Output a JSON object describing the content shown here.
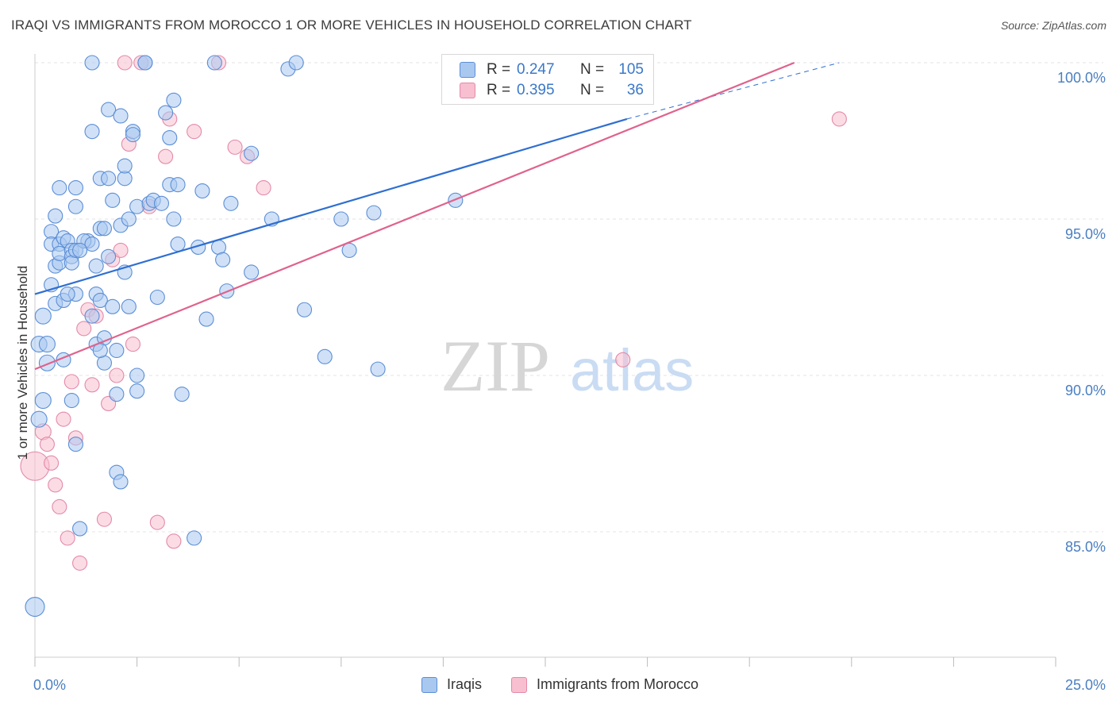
{
  "header": {
    "title": "IRAQI VS IMMIGRANTS FROM MOROCCO 1 OR MORE VEHICLES IN HOUSEHOLD CORRELATION CHART",
    "source": "Source: ZipAtlas.com"
  },
  "watermark": {
    "zip": "ZIP",
    "atlas": "atlas"
  },
  "legend": {
    "rows": [
      {
        "r_label": "R =",
        "r_value": "0.247",
        "n_label": "N =",
        "n_value": "105"
      },
      {
        "r_label": "R =",
        "r_value": "0.395",
        "n_label": "N =",
        "n_value": "36"
      }
    ]
  },
  "bottom_legend": {
    "series1": "Iraqis",
    "series2": "Immigrants from Morocco"
  },
  "colors": {
    "blue_fill": "#a9c8f0",
    "blue_stroke": "#5b8ed6",
    "blue_line": "#2f6fd1",
    "pink_fill": "#f7bfd0",
    "pink_stroke": "#e48aa8",
    "pink_line": "#e0628d",
    "tick_text": "#4a7fc1",
    "grid": "#e3e3e3"
  },
  "chart_data": {
    "type": "scatter",
    "title": "IRAQI VS IMMIGRANTS FROM MOROCCO 1 OR MORE VEHICLES IN HOUSEHOLD CORRELATION CHART",
    "xlabel": "",
    "ylabel": "1 or more Vehicles in Household",
    "xlim": [
      0,
      25
    ],
    "ylim": [
      80,
      100.3
    ],
    "x_tick_labels": [
      "0.0%",
      "25.0%"
    ],
    "y_ticks": [
      85,
      90,
      95,
      100
    ],
    "y_tick_labels": [
      "85.0%",
      "90.0%",
      "95.0%",
      "100.0%"
    ],
    "grid": true,
    "legend_position": "top-center",
    "series": [
      {
        "name": "Iraqis",
        "trend": {
          "x": [
            0,
            14.5
          ],
          "y": [
            92.6,
            98.2
          ],
          "dashed_to": {
            "x": 19.7,
            "y": 100.0
          }
        },
        "points": [
          [
            0.1,
            91.0,
            10
          ],
          [
            0.1,
            88.6,
            10
          ],
          [
            0.3,
            91.0,
            10
          ],
          [
            0.3,
            90.4,
            10
          ],
          [
            0.2,
            91.9,
            10
          ],
          [
            0.2,
            89.2,
            10
          ],
          [
            0.4,
            92.9,
            9
          ],
          [
            0.4,
            94.6,
            9
          ],
          [
            0.4,
            94.2,
            9
          ],
          [
            0.5,
            95.1,
            9
          ],
          [
            0.5,
            93.5,
            9
          ],
          [
            0.5,
            92.3,
            9
          ],
          [
            0.6,
            93.6,
            9
          ],
          [
            0.6,
            94.2,
            9
          ],
          [
            0.6,
            93.9,
            9
          ],
          [
            0.7,
            94.4,
            9
          ],
          [
            0.7,
            92.4,
            9
          ],
          [
            0.7,
            90.5,
            9
          ],
          [
            0.8,
            94.3,
            9
          ],
          [
            0.9,
            94.0,
            9
          ],
          [
            0.9,
            93.8,
            9
          ],
          [
            0.9,
            93.6,
            9
          ],
          [
            1.0,
            92.6,
            9
          ],
          [
            1.0,
            94.0,
            9
          ],
          [
            1.0,
            95.4,
            9
          ],
          [
            1.0,
            96.0,
            9
          ],
          [
            0.9,
            89.2,
            9
          ],
          [
            1.0,
            87.8,
            9
          ],
          [
            1.1,
            85.1,
            9
          ],
          [
            1.3,
            94.3,
            9
          ],
          [
            1.2,
            94.3,
            9
          ],
          [
            1.4,
            94.2,
            9
          ],
          [
            1.4,
            91.9,
            9
          ],
          [
            1.4,
            97.8,
            9
          ],
          [
            1.5,
            93.5,
            9
          ],
          [
            1.5,
            92.6,
            9
          ],
          [
            1.5,
            91.0,
            9
          ],
          [
            1.6,
            96.3,
            9
          ],
          [
            1.6,
            94.7,
            9
          ],
          [
            1.6,
            92.4,
            9
          ],
          [
            1.7,
            94.7,
            9
          ],
          [
            1.7,
            91.2,
            9
          ],
          [
            1.7,
            90.4,
            9
          ],
          [
            1.8,
            96.3,
            9
          ],
          [
            1.8,
            93.8,
            9
          ],
          [
            1.8,
            98.5,
            9
          ],
          [
            1.9,
            95.6,
            9
          ],
          [
            1.9,
            92.2,
            9
          ],
          [
            2.0,
            90.8,
            9
          ],
          [
            2.0,
            89.4,
            9
          ],
          [
            2.0,
            86.9,
            9
          ],
          [
            2.1,
            98.3,
            9
          ],
          [
            2.1,
            94.8,
            9
          ],
          [
            2.1,
            86.6,
            9
          ],
          [
            2.2,
            96.3,
            9
          ],
          [
            2.2,
            96.7,
            9
          ],
          [
            2.2,
            93.3,
            9
          ],
          [
            2.3,
            95.0,
            9
          ],
          [
            2.3,
            92.2,
            9
          ],
          [
            2.4,
            97.8,
            9
          ],
          [
            2.4,
            97.7,
            9
          ],
          [
            2.5,
            95.4,
            9
          ],
          [
            2.5,
            90.0,
            9
          ],
          [
            2.5,
            89.5,
            9
          ],
          [
            2.7,
            100.0,
            9
          ],
          [
            2.8,
            95.5,
            9
          ],
          [
            2.9,
            95.6,
            9
          ],
          [
            3.0,
            92.5,
            9
          ],
          [
            3.2,
            98.4,
            9
          ],
          [
            3.3,
            97.6,
            9
          ],
          [
            3.3,
            96.1,
            9
          ],
          [
            3.4,
            98.8,
            9
          ],
          [
            3.4,
            95.0,
            9
          ],
          [
            3.5,
            96.1,
            9
          ],
          [
            3.5,
            94.2,
            9
          ],
          [
            3.6,
            89.4,
            9
          ],
          [
            3.9,
            84.8,
            9
          ],
          [
            4.0,
            94.1,
            9
          ],
          [
            4.1,
            95.9,
            9
          ],
          [
            4.2,
            91.8,
            9
          ],
          [
            4.5,
            94.1,
            9
          ],
          [
            4.6,
            93.7,
            9
          ],
          [
            4.7,
            92.7,
            9
          ],
          [
            4.8,
            95.5,
            9
          ],
          [
            4.4,
            100.0,
            9
          ],
          [
            5.3,
            93.3,
            9
          ],
          [
            5.3,
            97.1,
            9
          ],
          [
            5.8,
            95.0,
            9
          ],
          [
            6.2,
            99.8,
            9
          ],
          [
            6.4,
            100.0,
            9
          ],
          [
            6.6,
            92.1,
            9
          ],
          [
            7.1,
            90.6,
            9
          ],
          [
            7.5,
            95.0,
            9
          ],
          [
            7.7,
            94.0,
            9
          ],
          [
            8.3,
            95.2,
            9
          ],
          [
            8.4,
            90.2,
            9
          ],
          [
            10.3,
            95.6,
            9
          ],
          [
            0.0,
            82.6,
            12
          ],
          [
            1.4,
            100.0,
            9
          ],
          [
            2.7,
            100.0,
            9
          ],
          [
            0.8,
            92.6,
            9
          ],
          [
            1.1,
            94.0,
            9
          ],
          [
            0.6,
            96.0,
            9
          ],
          [
            3.1,
            95.5,
            9
          ],
          [
            1.6,
            90.8,
            9
          ]
        ]
      },
      {
        "name": "Immigrants from Morocco",
        "trend": {
          "x": [
            0,
            18.6
          ],
          "y": [
            90.2,
            100.0
          ]
        },
        "points": [
          [
            0.0,
            87.1,
            18
          ],
          [
            0.2,
            88.2,
            10
          ],
          [
            0.3,
            87.8,
            9
          ],
          [
            0.4,
            87.2,
            9
          ],
          [
            0.5,
            86.5,
            9
          ],
          [
            0.6,
            85.8,
            9
          ],
          [
            0.7,
            88.6,
            9
          ],
          [
            0.8,
            84.8,
            9
          ],
          [
            0.9,
            89.8,
            9
          ],
          [
            1.0,
            88.0,
            9
          ],
          [
            1.1,
            84.0,
            9
          ],
          [
            1.2,
            91.5,
            9
          ],
          [
            1.3,
            92.1,
            9
          ],
          [
            1.4,
            89.7,
            9
          ],
          [
            1.5,
            91.9,
            9
          ],
          [
            1.7,
            85.4,
            9
          ],
          [
            1.8,
            89.1,
            9
          ],
          [
            1.9,
            93.7,
            9
          ],
          [
            2.0,
            90.0,
            9
          ],
          [
            2.1,
            94.0,
            9
          ],
          [
            2.2,
            100.0,
            9
          ],
          [
            2.3,
            97.4,
            9
          ],
          [
            2.4,
            91.0,
            9
          ],
          [
            2.6,
            100.0,
            9
          ],
          [
            2.8,
            95.4,
            9
          ],
          [
            3.0,
            85.3,
            9
          ],
          [
            3.2,
            97.0,
            9
          ],
          [
            3.3,
            98.2,
            9
          ],
          [
            3.4,
            84.7,
            9
          ],
          [
            3.9,
            97.8,
            9
          ],
          [
            4.5,
            100.0,
            9
          ],
          [
            4.9,
            97.3,
            9
          ],
          [
            5.2,
            97.0,
            9
          ],
          [
            5.6,
            96.0,
            9
          ],
          [
            14.4,
            90.5,
            9
          ],
          [
            19.7,
            98.2,
            9
          ]
        ]
      }
    ]
  }
}
